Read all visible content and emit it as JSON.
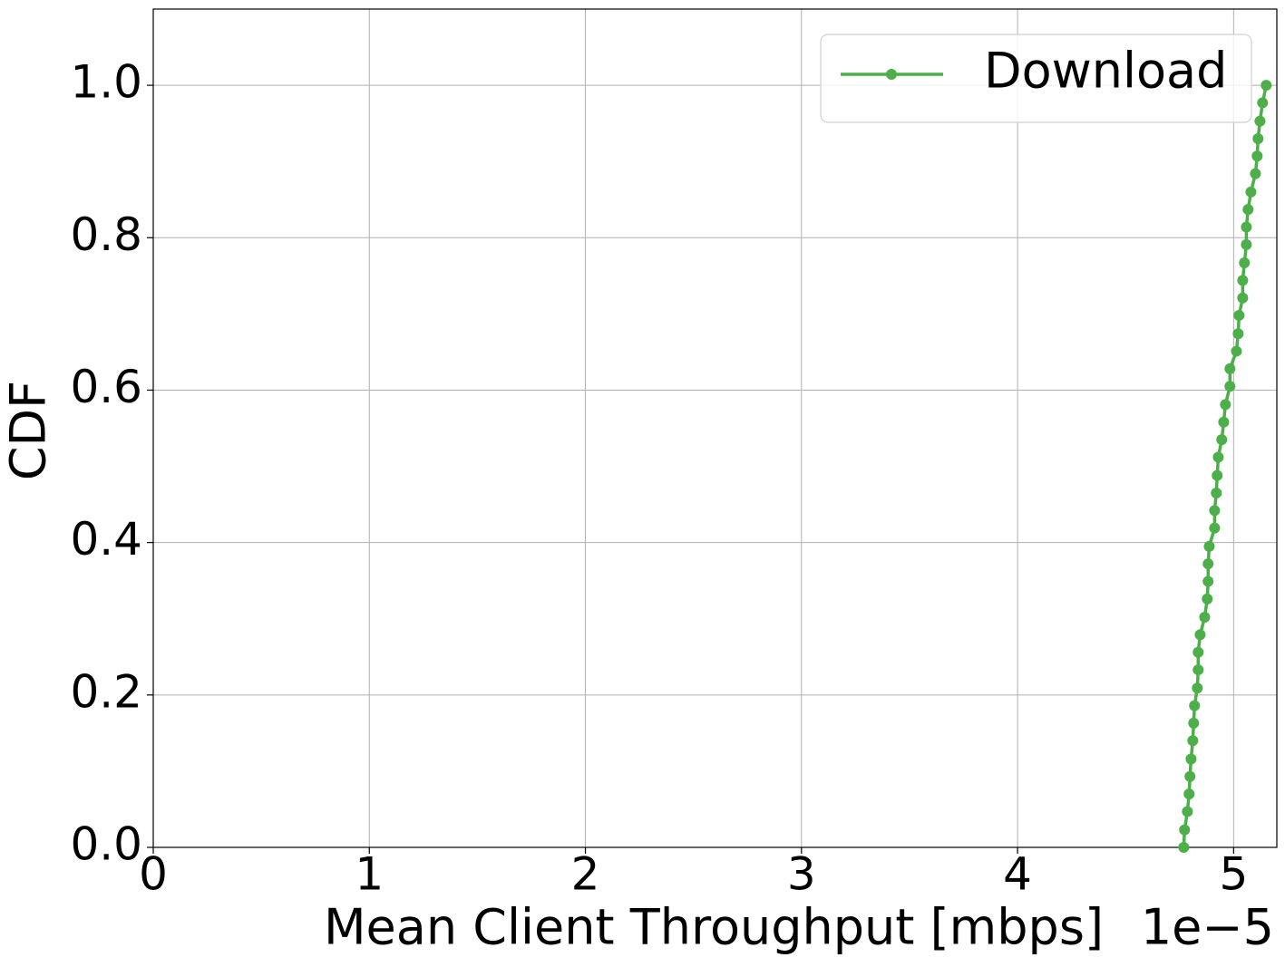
{
  "chart_data": {
    "type": "line",
    "xlabel": "Mean Client Throughput [mbps]",
    "x_offset_label": "1e−5",
    "ylabel": "CDF",
    "xlim": [
      0,
      5.2
    ],
    "xticks": [
      0,
      1,
      2,
      3,
      4,
      5
    ],
    "ylim": [
      0,
      1.1
    ],
    "yticks": [
      {
        "value": 0,
        "label": "0.0"
      },
      {
        "value": 0.2,
        "label": "0.2"
      },
      {
        "value": 0.4,
        "label": "0.4"
      },
      {
        "value": 0.6,
        "label": "0.6"
      },
      {
        "value": 0.8,
        "label": "0.8"
      },
      {
        "value": 1,
        "label": "1.0"
      }
    ],
    "grid": true,
    "legend": "upper right",
    "series": [
      {
        "name": "Download",
        "color": "#4daf4a",
        "x": [
          4.769,
          4.773,
          4.786,
          4.794,
          4.798,
          4.803,
          4.811,
          4.815,
          4.819,
          4.832,
          4.836,
          4.836,
          4.845,
          4.866,
          4.878,
          4.882,
          4.882,
          4.887,
          4.912,
          4.912,
          4.92,
          4.924,
          4.929,
          4.945,
          4.954,
          4.962,
          4.983,
          4.983,
          5.013,
          5.021,
          5.025,
          5.042,
          5.042,
          5.05,
          5.059,
          5.059,
          5.067,
          5.08,
          5.101,
          5.109,
          5.113,
          5.122,
          5.134,
          5.151
        ],
        "values": [
          0,
          0.023,
          0.047,
          0.07,
          0.093,
          0.116,
          0.14,
          0.163,
          0.186,
          0.209,
          0.233,
          0.256,
          0.279,
          0.302,
          0.326,
          0.349,
          0.372,
          0.395,
          0.419,
          0.442,
          0.465,
          0.488,
          0.512,
          0.535,
          0.558,
          0.581,
          0.605,
          0.628,
          0.651,
          0.674,
          0.698,
          0.721,
          0.744,
          0.767,
          0.791,
          0.814,
          0.837,
          0.86,
          0.884,
          0.907,
          0.93,
          0.953,
          0.977,
          1
        ]
      }
    ]
  }
}
